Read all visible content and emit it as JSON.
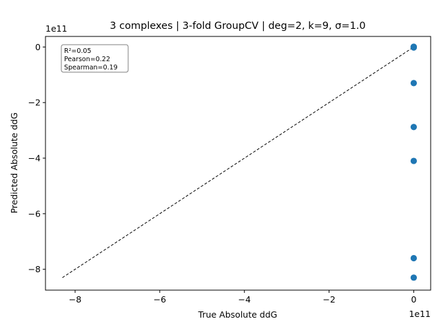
{
  "chart_data": {
    "type": "scatter",
    "title": "3 complexes | 3-fold GroupCV | deg=2, k=9, σ=1.0",
    "xlabel": "True Absolute ddG",
    "ylabel": "Predicted Absolute ddG",
    "x_offset_label": "1e11",
    "y_offset_label": "1e11",
    "x_scale": 100000000000.0,
    "y_scale": 100000000000.0,
    "xlim": [
      -8.7,
      0.4
    ],
    "ylim": [
      -8.75,
      0.38
    ],
    "xticks": [
      -8,
      -6,
      -4,
      -2,
      0
    ],
    "yticks": [
      -8,
      -6,
      -4,
      -2,
      0
    ],
    "xtick_labels": [
      "−8",
      "−6",
      "−4",
      "−2",
      "0"
    ],
    "ytick_labels": [
      "−8",
      "−6",
      "−4",
      "−2",
      "0"
    ],
    "point_color": "#1f77b4",
    "series": [
      {
        "name": "predictions",
        "x": [
          0,
          0,
          0,
          0,
          0,
          0,
          0,
          0,
          0,
          0
        ],
        "y": [
          0,
          -0.01,
          0.01,
          -0.02,
          -1.3,
          -2.88,
          -4.1,
          -7.6,
          -8.3,
          0.005
        ]
      }
    ],
    "reference_line": {
      "x": [
        -8.3,
        0
      ],
      "y": [
        -8.3,
        0
      ],
      "style": "dashed",
      "color": "#000000"
    },
    "stats_box": {
      "r2": "R²=0.05",
      "pearson": "Pearson=0.22",
      "spearman": "Spearman=0.19"
    }
  }
}
